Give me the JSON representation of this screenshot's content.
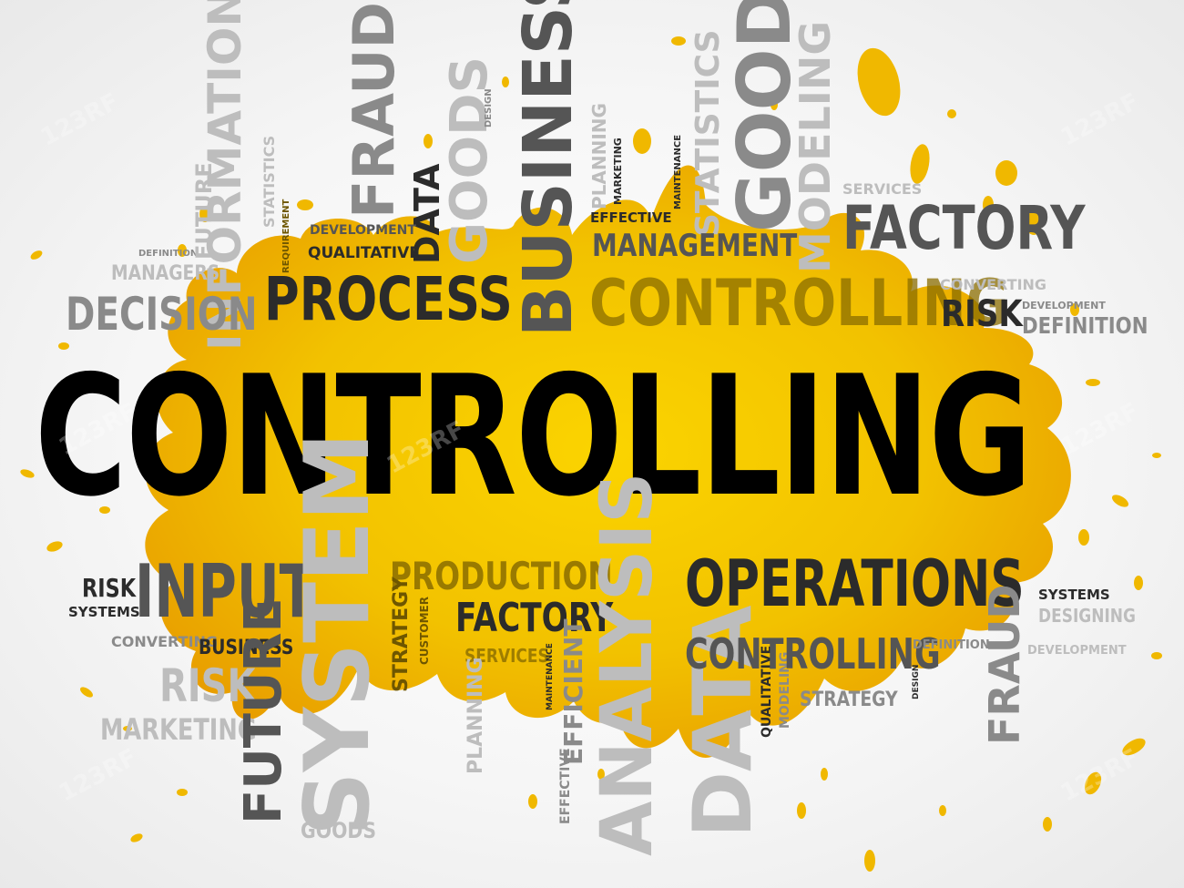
{
  "main_word": "CONTROLLING",
  "colors": {
    "splash_yellow": "#f2c200",
    "splash_orange": "#e79a00",
    "text_dark": "#2b2b2b",
    "text_gray": "#8a8a8a"
  },
  "watermark": "123RF",
  "words": {
    "fraud_v1": "FRAUD",
    "information_v": "INFORMATION",
    "goods_v1": "GOODS",
    "data_v1": "DATA",
    "business_v1": "BUSINESS",
    "design_top": "DESIGN",
    "planning_v": "PLANNING",
    "marketing_small": "MARKETING",
    "maintenance_small": "MAINTENANCE",
    "statistics_v1": "STATISTICS",
    "goods_v2": "GOODS",
    "modeling_v1": "MODELING",
    "services_top": "SERVICES",
    "factory_top": "FACTORY",
    "effective_top": "EFFECTIVE",
    "management": "MANAGEMENT",
    "controlling_top": "CONTROLLING",
    "converting_right": "CONVERTING",
    "development_right": "DEVELOPMENT",
    "risk_right": "RISK",
    "definition_right": "DEFINITION",
    "definition_left": "DEFINITION",
    "managers": "MANAGERS",
    "decision": "DECISION",
    "future_v1": "FUTURE",
    "statistics_small": "STATISTICS",
    "development_left": "DEVELOPMENT",
    "qualitative_top": "QUALITATIVE",
    "requirement_small": "REQUIREMENT",
    "process": "PROCESS",
    "risk_left": "RISK",
    "input": "INPUT",
    "systems_left": "SYSTEMS",
    "converting_left": "CONVERTING",
    "business_bottom": "BUSINESS",
    "risk_bottom": "RISK",
    "marketing_bottom": "MARKETING",
    "future_v2": "FUTURE",
    "system_v": "SYSTEM",
    "goods_bottom": "GOODS",
    "production": "PRODUCTION",
    "factory_mid": "FACTORY",
    "strategy_v": "STRATEGY",
    "customer_v": "CUSTOMER",
    "services_bottom": "SERVICES",
    "maintenance_v": "MAINTENANCE",
    "planning_v2": "PLANNING",
    "effective_v": "EFFECTIVE",
    "efficient_v": "EFFICIENT",
    "analysis_v": "ANALYSIS",
    "data_v2": "DATA",
    "qualitative_v": "QUALITATIVE",
    "modeling_v2": "MODELING",
    "operations": "OPERATIONS",
    "controlling_bottom": "CONTROLLING",
    "strategy_bottom": "STRATEGY",
    "design_bottom": "DESIGN",
    "definition_bottom": "DEFINITION",
    "systems_right": "SYSTEMS",
    "designing": "DESIGNING",
    "development_bottom": "DEVELOPMENT",
    "fraud_v2": "FRAUD"
  }
}
